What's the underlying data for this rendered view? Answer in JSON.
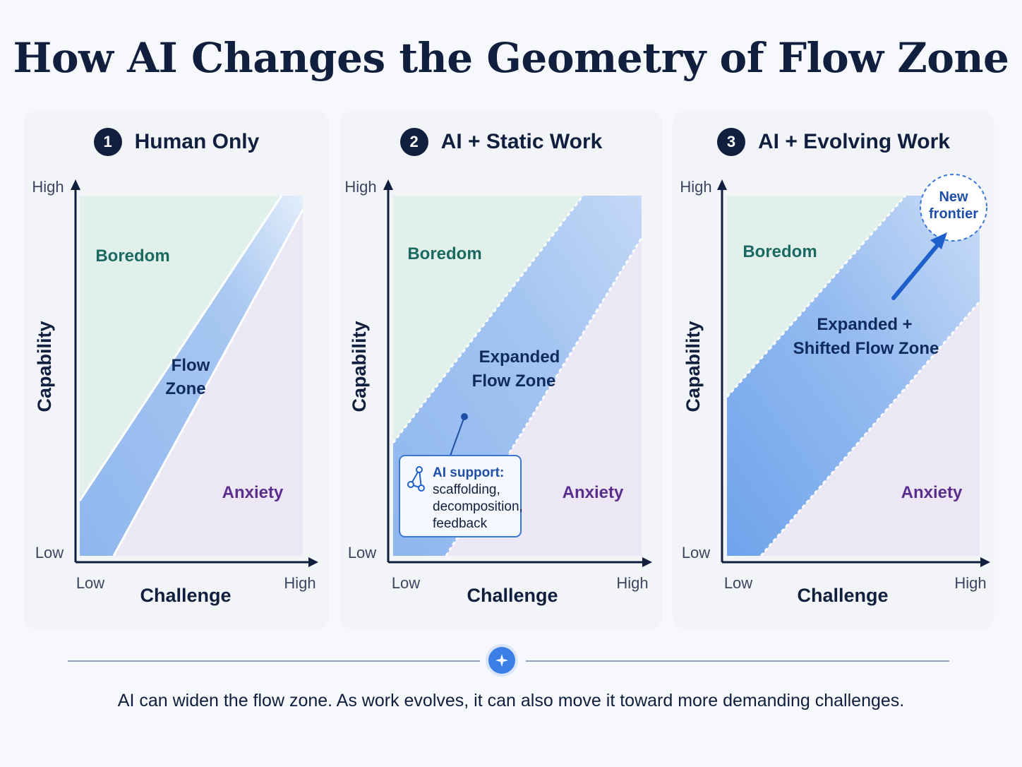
{
  "title": "How AI Changes the Geometry of Flow Zone",
  "colors": {
    "navy": "#0f1f3d",
    "boredom_fill": "#e1f0ea",
    "anxiety_fill": "#ece7f4",
    "flow_fill": "#9cc0f0",
    "boredom_text": "#1a6a62",
    "anxiety_text": "#5b2e8c",
    "accent_blue": "#1f5fcc"
  },
  "panels": [
    {
      "number": "1",
      "title": "Human Only",
      "y_axis": {
        "label": "Capability",
        "low": "Low",
        "high": "High"
      },
      "x_axis": {
        "label": "Challenge",
        "low": "Low",
        "high": "High"
      },
      "regions": {
        "boredom": "Boredom",
        "anxiety": "Anxiety"
      },
      "flow_label": [
        "Flow",
        "Zone"
      ]
    },
    {
      "number": "2",
      "title": "AI + Static Work",
      "y_axis": {
        "label": "Capability",
        "low": "Low",
        "high": "High"
      },
      "x_axis": {
        "label": "Challenge",
        "low": "Low",
        "high": "High"
      },
      "regions": {
        "boredom": "Boredom",
        "anxiety": "Anxiety"
      },
      "flow_label": [
        "Expanded",
        "Flow Zone"
      ],
      "callout": {
        "icon": "network-icon",
        "title": "AI support:",
        "lines": [
          "scaffolding,",
          "decomposition,",
          "feedback"
        ]
      }
    },
    {
      "number": "3",
      "title": "AI + Evolving Work",
      "y_axis": {
        "label": "Capability",
        "low": "Low",
        "high": "High"
      },
      "x_axis": {
        "label": "Challenge",
        "low": "Low",
        "high": "High"
      },
      "regions": {
        "boredom": "Boredom",
        "anxiety": "Anxiety"
      },
      "flow_label": [
        "Expanded +",
        "Shifted Flow Zone"
      ],
      "frontier": [
        "New",
        "frontier"
      ]
    }
  ],
  "divider_icon": "sparkle-icon",
  "caption": "AI can widen the flow zone. As work evolves, it can also move it toward more demanding challenges."
}
